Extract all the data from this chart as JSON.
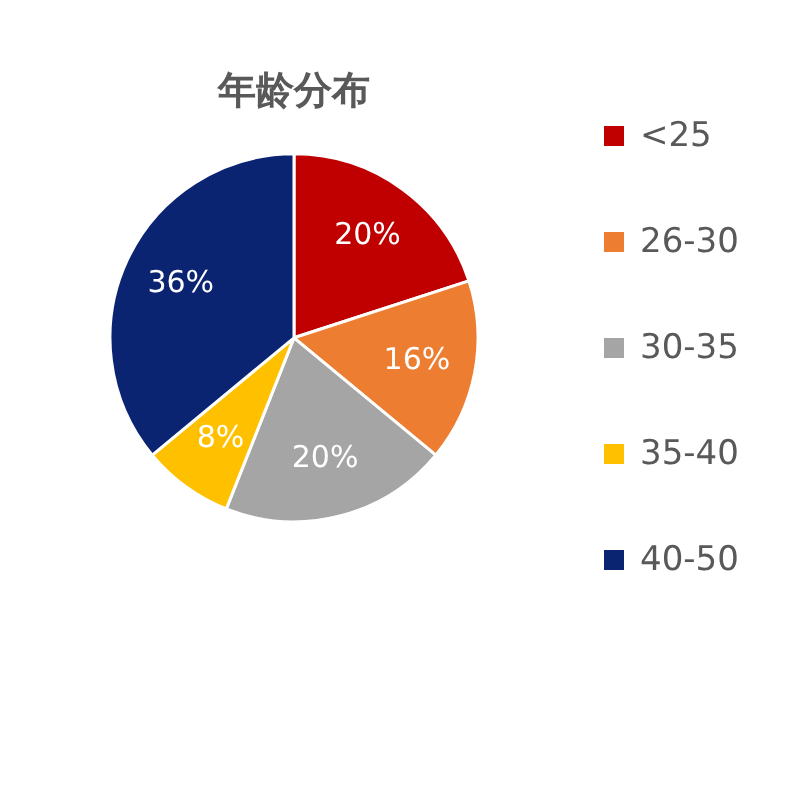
{
  "chart_data": {
    "type": "pie",
    "title": "年龄分布",
    "categories": [
      "<25",
      "26-30",
      "30-35",
      "35-40",
      "40-50"
    ],
    "values": [
      20,
      16,
      20,
      8,
      36
    ],
    "value_labels": [
      "20%",
      "16%",
      "20%",
      "8%",
      "36%"
    ],
    "colors": [
      "#c00000",
      "#ed7d31",
      "#a5a5a5",
      "#ffc000",
      "#0a2472"
    ],
    "legend": "right"
  }
}
